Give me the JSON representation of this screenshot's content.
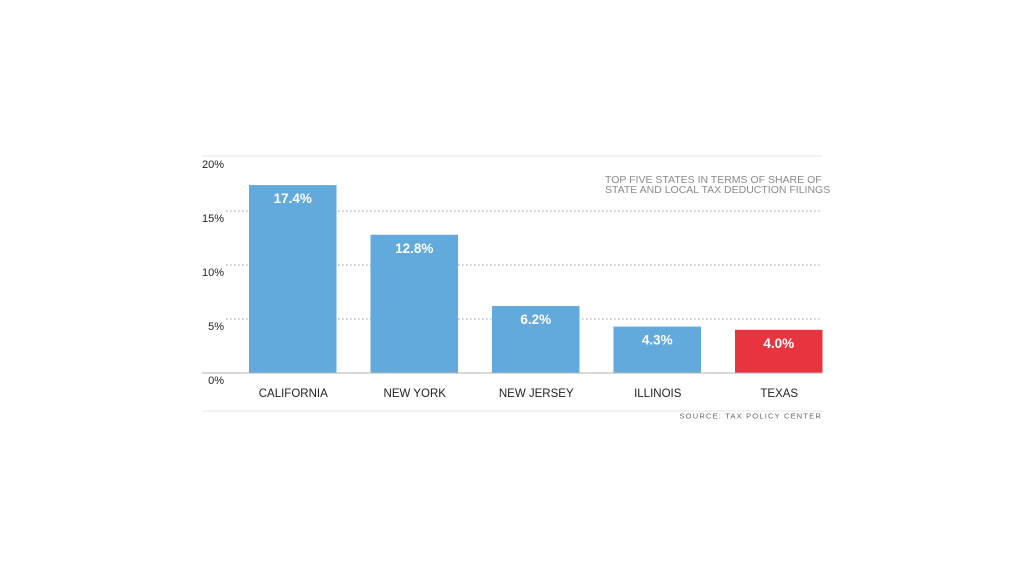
{
  "chart_data": {
    "type": "bar",
    "categories": [
      "CALIFORNIA",
      "NEW YORK",
      "NEW JERSEY",
      "ILLINOIS",
      "TEXAS"
    ],
    "values": [
      17.4,
      12.8,
      6.2,
      4.3,
      4.0
    ],
    "value_labels": [
      "17.4%",
      "12.8%",
      "6.2%",
      "4.3%",
      "4.0%"
    ],
    "ylim": [
      0,
      20
    ],
    "yticks": [
      0,
      5,
      10,
      15,
      20
    ],
    "ytick_labels": [
      "0%",
      "5%",
      "10%",
      "15%",
      "20%"
    ],
    "grid": true,
    "annotation_lines": [
      "TOP FIVE STATES IN TERMS OF SHARE OF",
      "STATE AND LOCAL TAX DEDUCTION FILINGS"
    ],
    "source": "SOURCE: TAX POLICY CENTER",
    "colors": {
      "bar": "#62a9dc",
      "highlight": "#e8343f",
      "highlight_category": "TEXAS"
    }
  }
}
